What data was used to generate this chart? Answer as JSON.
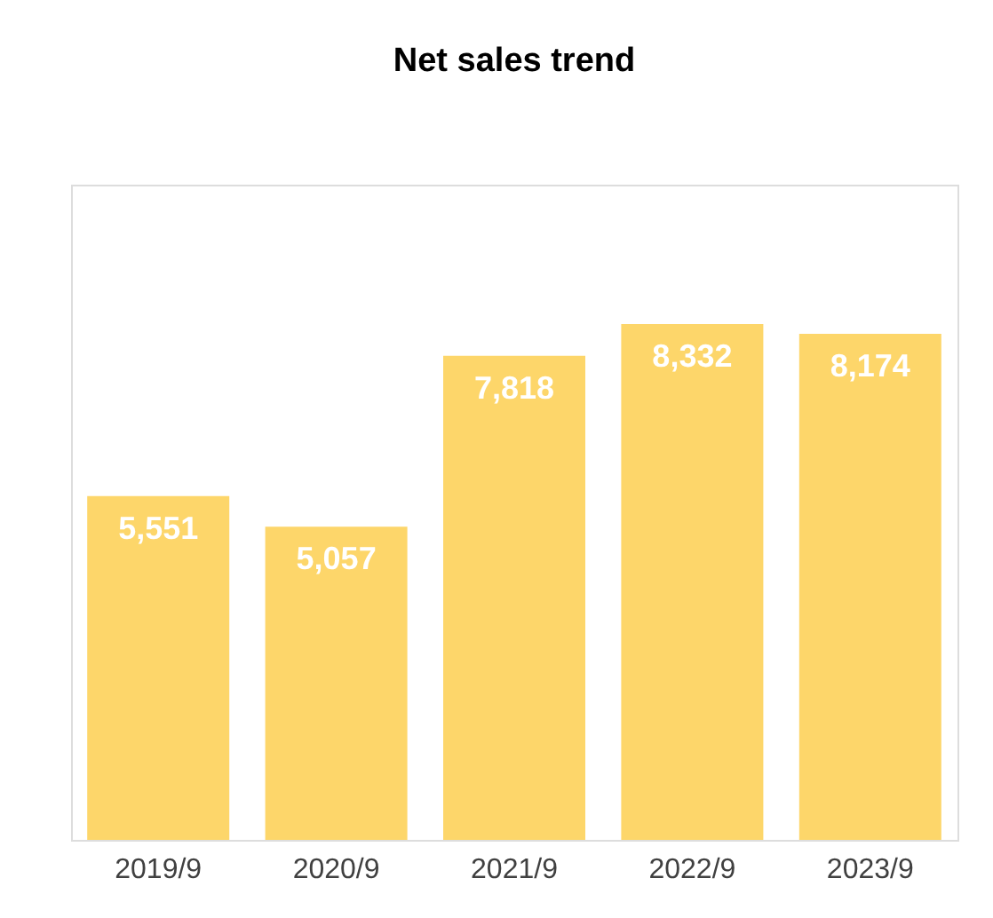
{
  "chart_data": {
    "type": "bar",
    "title": "Net sales trend",
    "categories": [
      "2019/9",
      "2020/9",
      "2021/9",
      "2022/9",
      "2023/9"
    ],
    "values": [
      5551,
      5057,
      7818,
      8332,
      8174
    ],
    "value_labels": [
      "5,551",
      "5,057",
      "7,818",
      "8,332",
      "8,174"
    ],
    "color": "#fdd66a"
  }
}
